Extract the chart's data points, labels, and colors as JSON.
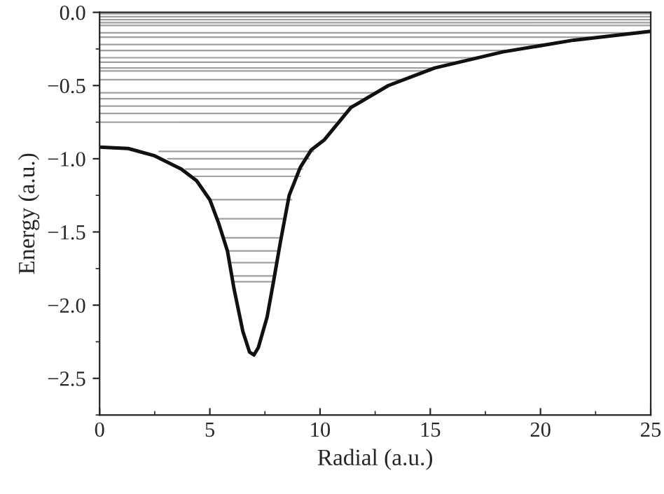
{
  "chart_data": {
    "type": "line",
    "xlabel": "Radial (a.u.)",
    "ylabel": "Energy (a.u.)",
    "xlim": [
      0,
      25
    ],
    "ylim": [
      -2.75,
      0
    ],
    "xticks": [
      0,
      5,
      10,
      15,
      20,
      25
    ],
    "yticks": [
      {
        "value": 0,
        "label": "0.0"
      },
      {
        "value": -0.5,
        "label": "−0.5"
      },
      {
        "value": -1,
        "label": "−1.0"
      },
      {
        "value": -1.5,
        "label": "−1.5"
      },
      {
        "value": -2,
        "label": "−2.0"
      },
      {
        "value": -2.5,
        "label": "−2.5"
      }
    ],
    "grid": false,
    "legend": false,
    "marker": "none",
    "series": [
      {
        "color": "#a0a0a0",
        "x": [
          0,
          25
        ],
        "values": [
          -0.01,
          -0.01
        ]
      },
      {
        "color": "#a0a0a0",
        "x": [
          0,
          25
        ],
        "values": [
          -0.03,
          -0.03
        ]
      },
      {
        "color": "#a0a0a0",
        "x": [
          0,
          25
        ],
        "values": [
          -0.05,
          -0.05
        ]
      },
      {
        "color": "#a0a0a0",
        "x": [
          0,
          25
        ],
        "values": [
          -0.07,
          -0.07
        ]
      },
      {
        "color": "#a0a0a0",
        "x": [
          0,
          25
        ],
        "values": [
          -0.09,
          -0.09
        ]
      },
      {
        "color": "#a0a0a0",
        "x": [
          0,
          24.7
        ],
        "values": [
          -0.14,
          -0.14
        ]
      },
      {
        "color": "#a0a0a0",
        "x": [
          0,
          22.9
        ],
        "values": [
          -0.17,
          -0.17
        ]
      },
      {
        "color": "#a0a0a0",
        "x": [
          0,
          20.4
        ],
        "values": [
          -0.22,
          -0.22
        ]
      },
      {
        "color": "#a0a0a0",
        "x": [
          0,
          18.6
        ],
        "values": [
          -0.26,
          -0.26
        ]
      },
      {
        "color": "#a0a0a0",
        "x": [
          0,
          17.3
        ],
        "values": [
          -0.31,
          -0.31
        ]
      },
      {
        "color": "#a0a0a0",
        "x": [
          0,
          16.4
        ],
        "values": [
          -0.34,
          -0.34
        ]
      },
      {
        "color": "#a0a0a0",
        "x": [
          0,
          15.2
        ],
        "values": [
          -0.38,
          -0.38
        ]
      },
      {
        "color": "#a0a0a0",
        "x": [
          0,
          14.8
        ],
        "values": [
          -0.4,
          -0.4
        ]
      },
      {
        "color": "#a0a0a0",
        "x": [
          0,
          13.9
        ],
        "values": [
          -0.46,
          -0.46
        ]
      },
      {
        "color": "#a0a0a0",
        "x": [
          0,
          12.5
        ],
        "values": [
          -0.55,
          -0.55
        ]
      },
      {
        "color": "#a0a0a0",
        "x": [
          0,
          12.0
        ],
        "values": [
          -0.59,
          -0.59
        ]
      },
      {
        "color": "#a0a0a0",
        "x": [
          0,
          11.5
        ],
        "values": [
          -0.64,
          -0.64
        ]
      },
      {
        "color": "#a0a0a0",
        "x": [
          0,
          11.1
        ],
        "values": [
          -0.69,
          -0.69
        ]
      },
      {
        "color": "#a0a0a0",
        "x": [
          0,
          10.7
        ],
        "values": [
          -0.75,
          -0.75
        ]
      },
      {
        "color": "#a0a0a0",
        "x": [
          2.7,
          9.7
        ],
        "values": [
          -0.95,
          -0.95
        ]
      },
      {
        "color": "#a0a0a0",
        "x": [
          3.1,
          9.5
        ],
        "values": [
          -1.0,
          -1.0
        ]
      },
      {
        "color": "#a0a0a0",
        "x": [
          3.9,
          9.2
        ],
        "values": [
          -1.07,
          -1.07
        ]
      },
      {
        "color": "#a0a0a0",
        "x": [
          4.3,
          9.1
        ],
        "values": [
          -1.12,
          -1.12
        ]
      },
      {
        "color": "#a0a0a0",
        "x": [
          5.0,
          8.7
        ],
        "values": [
          -1.28,
          -1.28
        ]
      },
      {
        "color": "#a0a0a0",
        "x": [
          5.3,
          8.4
        ],
        "values": [
          -1.41,
          -1.41
        ]
      },
      {
        "color": "#a0a0a0",
        "x": [
          5.7,
          8.2
        ],
        "values": [
          -1.54,
          -1.54
        ]
      },
      {
        "color": "#a0a0a0",
        "x": [
          5.8,
          8.1
        ],
        "values": [
          -1.63,
          -1.63
        ]
      },
      {
        "color": "#a0a0a0",
        "x": [
          5.9,
          8.0
        ],
        "values": [
          -1.71,
          -1.71
        ]
      },
      {
        "color": "#a0a0a0",
        "x": [
          6.0,
          7.9
        ],
        "values": [
          -1.8,
          -1.8
        ]
      },
      {
        "color": "#a0a0a0",
        "x": [
          6.1,
          7.8
        ],
        "values": [
          -1.84,
          -1.84
        ]
      },
      {
        "color": "#111111",
        "x": [
          0,
          1.3,
          2.5,
          3.7,
          4.4,
          5.0,
          5.4,
          5.8,
          6.1,
          6.5,
          6.8,
          7.0,
          7.2,
          7.6,
          7.9,
          8.2,
          8.6,
          9.1,
          9.6,
          10.2,
          11.4,
          13.1,
          15.2,
          18.3,
          21.5,
          25
        ],
        "values": [
          -0.92,
          -0.93,
          -0.98,
          -1.07,
          -1.15,
          -1.28,
          -1.44,
          -1.63,
          -1.89,
          -2.18,
          -2.32,
          -2.34,
          -2.29,
          -2.08,
          -1.83,
          -1.57,
          -1.25,
          -1.06,
          -0.94,
          -0.87,
          -0.65,
          -0.5,
          -0.38,
          -0.27,
          -0.19,
          -0.13
        ]
      }
    ]
  }
}
